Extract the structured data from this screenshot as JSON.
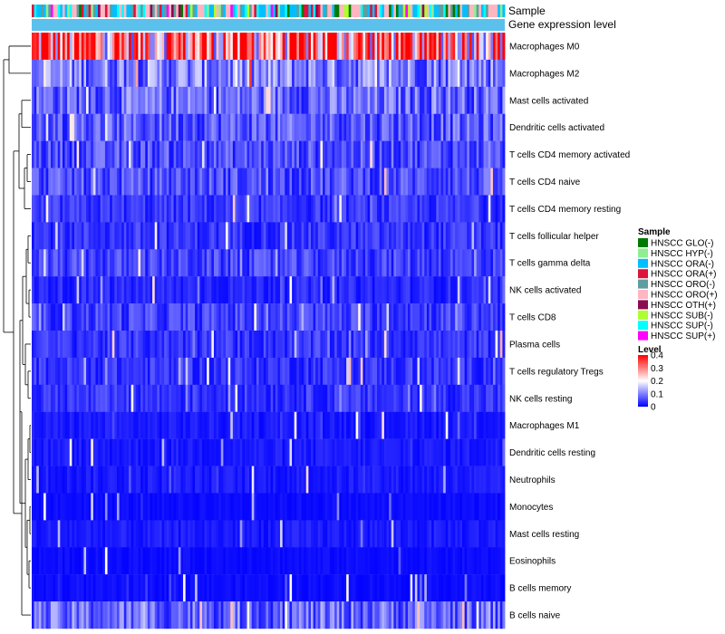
{
  "chart_data": {
    "type": "heatmap",
    "title": "",
    "annotation_rows": [
      "Sample",
      "Gene expression level"
    ],
    "row_labels": [
      "Macrophages M0",
      "Macrophages M2",
      "Mast cells activated",
      "Dendritic cells activated",
      "T cells CD4 memory activated",
      "T cells CD4 naive",
      "T cells CD4 memory resting",
      "T cells follicular helper",
      "T cells gamma delta",
      "NK cells activated",
      "T cells CD8",
      "Plasma cells",
      "T cells regulatory  Tregs",
      "NK cells resting",
      "Macrophages M1",
      "Dendritic cells resting",
      "Neutrophils",
      "Monocytes",
      "Mast cells resting",
      "Eosinophils",
      "B cells memory",
      "B cells naive"
    ],
    "row_mean_levels": [
      0.3,
      0.1,
      0.08,
      0.07,
      0.06,
      0.06,
      0.04,
      0.04,
      0.05,
      0.03,
      0.05,
      0.04,
      0.04,
      0.04,
      0.02,
      0.02,
      0.02,
      0.01,
      0.02,
      0.01,
      0.01,
      0.08
    ],
    "column_count": 200,
    "sample_legend": {
      "title": "Sample",
      "items": [
        {
          "label": "HNSCC GLO(-)",
          "color": "#007a00"
        },
        {
          "label": "HNSCC HYP(-)",
          "color": "#90ee90"
        },
        {
          "label": "HNSCC ORA(-)",
          "color": "#00bfff"
        },
        {
          "label": "HNSCC ORA(+)",
          "color": "#dc143c"
        },
        {
          "label": "HNSCC ORO(-)",
          "color": "#5f9ea0"
        },
        {
          "label": "HNSCC ORO(+)",
          "color": "#ffb6c1"
        },
        {
          "label": "HNSCC OTH(+)",
          "color": "#8b0a50"
        },
        {
          "label": "HNSCC SUB(-)",
          "color": "#adff2f"
        },
        {
          "label": "HNSCC SUP(-)",
          "color": "#00ffff"
        },
        {
          "label": "HNSCC SUP(+)",
          "color": "#ff00ff"
        }
      ]
    },
    "level_legend": {
      "title": "Level",
      "range": [
        0,
        0.4
      ],
      "ticks": [
        "0.4",
        "0.3",
        "0.2",
        "0.1",
        "0"
      ],
      "colors": [
        "#0000ff",
        "#ffffff",
        "#ff0000"
      ]
    },
    "gene_expression_bar_color": "#5bc0eb"
  }
}
